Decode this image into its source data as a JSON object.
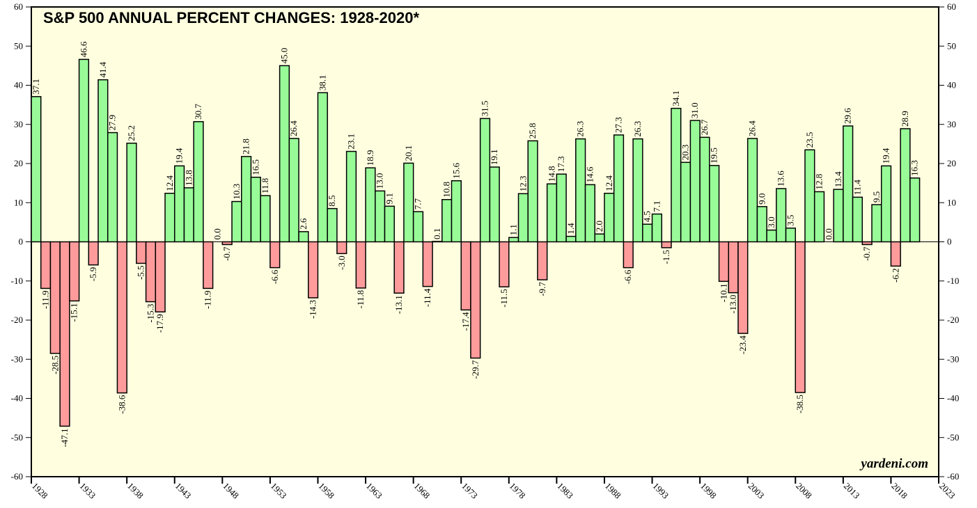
{
  "chart_data": {
    "type": "bar",
    "title": "S&P 500 ANNUAL PERCENT CHANGES: 1928-2020*",
    "annotation": "yardeni.com",
    "x": [
      1928,
      1929,
      1930,
      1931,
      1932,
      1933,
      1934,
      1935,
      1936,
      1937,
      1938,
      1939,
      1940,
      1941,
      1942,
      1943,
      1944,
      1945,
      1946,
      1947,
      1948,
      1949,
      1950,
      1951,
      1952,
      1953,
      1954,
      1955,
      1956,
      1957,
      1958,
      1959,
      1960,
      1961,
      1962,
      1963,
      1964,
      1965,
      1966,
      1967,
      1968,
      1969,
      1970,
      1971,
      1972,
      1973,
      1974,
      1975,
      1976,
      1977,
      1978,
      1979,
      1980,
      1981,
      1982,
      1983,
      1984,
      1985,
      1986,
      1987,
      1988,
      1989,
      1990,
      1991,
      1992,
      1993,
      1994,
      1995,
      1996,
      1997,
      1998,
      1999,
      2000,
      2001,
      2002,
      2003,
      2004,
      2005,
      2006,
      2007,
      2008,
      2009,
      2010,
      2011,
      2012,
      2013,
      2014,
      2015,
      2016,
      2017,
      2018,
      2019,
      2020
    ],
    "values": [
      37.1,
      -11.9,
      -28.5,
      -47.1,
      -15.1,
      46.6,
      -5.9,
      41.4,
      27.9,
      -38.6,
      25.2,
      -5.5,
      -15.3,
      -17.9,
      12.4,
      19.4,
      13.8,
      30.7,
      -11.9,
      0.0,
      -0.7,
      10.3,
      21.8,
      16.5,
      11.8,
      -6.6,
      45.0,
      26.4,
      2.6,
      -14.3,
      38.1,
      8.5,
      -3.0,
      23.1,
      -11.8,
      18.9,
      13.0,
      9.1,
      -13.1,
      20.1,
      7.7,
      -11.4,
      0.1,
      10.8,
      15.6,
      -17.4,
      -29.7,
      31.5,
      19.1,
      -11.5,
      1.1,
      12.3,
      25.8,
      -9.7,
      14.8,
      17.3,
      1.4,
      26.3,
      14.6,
      2.0,
      12.4,
      27.3,
      -6.6,
      26.3,
      4.5,
      7.1,
      -1.5,
      34.1,
      20.3,
      31.0,
      26.7,
      19.5,
      -10.1,
      -13.0,
      -23.4,
      26.4,
      9.0,
      3.0,
      13.6,
      3.5,
      -38.5,
      23.5,
      12.8,
      0.0,
      13.4,
      29.6,
      11.4,
      -0.7,
      9.5,
      19.4,
      -6.2,
      28.9,
      16.3
    ],
    "value_labels": [
      "37.1",
      "-11.9",
      "-28.5",
      "-47.1",
      "-15.1",
      "46.6",
      "-5.9",
      "41.4",
      "27.9",
      "-38.6",
      "25.2",
      "-5.5",
      "-15.3",
      "-17.9",
      "12.4",
      "19.4",
      "13.8",
      "30.7",
      "-11.9",
      "0.0",
      "-0.7",
      "10.3",
      "21.8",
      "16.5",
      "11.8",
      "-6.6",
      "45.0",
      "26.4",
      "2.6",
      "-14.3",
      "38.1",
      "8.5",
      "-3.0",
      "23.1",
      "-11.8",
      "18.9",
      "13.0",
      "9.1",
      "-13.1",
      "20.1",
      "7.7",
      "-11.4",
      "0.1",
      "10.8",
      "15.6",
      "-17.4",
      "-29.7",
      "31.5",
      "19.1",
      "-11.5",
      "1.1",
      "12.3",
      "25.8",
      "-9.7",
      "14.8",
      "17.3",
      "1.4",
      "26.3",
      "14.6",
      "2.0",
      "12.4",
      "27.3",
      "-6.6",
      "26.3",
      "4.5",
      "7.1",
      "-1.5",
      "34.1",
      "20.3",
      "31.0",
      "26.7",
      "19.5",
      "-10.1",
      "-13.0",
      "-23.4",
      "26.4",
      "9.0",
      "3.0",
      "13.6",
      "3.5",
      "-38.5",
      "23.5",
      "12.8",
      "0.0",
      "13.4",
      "29.6",
      "11.4",
      "-0.7",
      "9.5",
      "19.4",
      "-6.2",
      "28.9",
      "16.3"
    ],
    "positive_color": "#98fb98",
    "negative_color": "#ff9b9b",
    "background": "#ffffe0",
    "xlim": [
      1928,
      2023
    ],
    "xticks": [
      1928,
      1933,
      1938,
      1943,
      1948,
      1953,
      1958,
      1963,
      1968,
      1973,
      1978,
      1983,
      1988,
      1993,
      1998,
      2003,
      2008,
      2013,
      2018,
      2023
    ],
    "ylim": [
      -60,
      60
    ],
    "yticks": [
      -60,
      -50,
      -40,
      -30,
      -20,
      -10,
      0,
      10,
      20,
      30,
      40,
      50,
      60
    ]
  }
}
